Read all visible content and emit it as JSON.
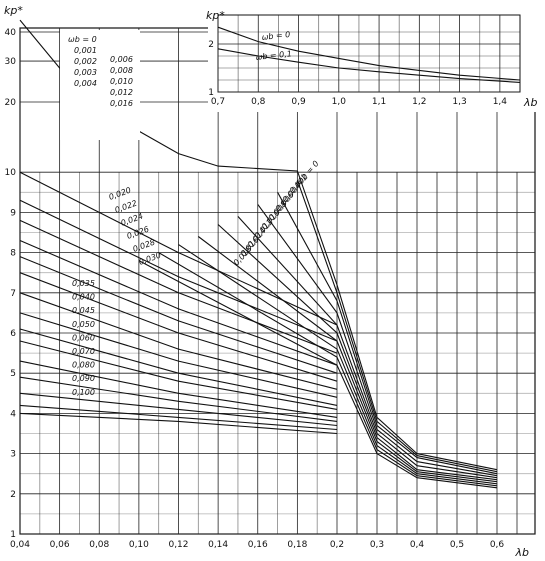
{
  "chart_data": [
    {
      "type": "line",
      "title": "",
      "ylabel": "kp*",
      "xlabel": "λb",
      "x_ticks": [
        "0,04",
        "0,06",
        "0,08",
        "0,10",
        "0,12",
        "0,14",
        "0,16",
        "0,18",
        "0,2",
        "0,3",
        "0,4",
        "0,5",
        "0,6"
      ],
      "y_ticks": [
        "1",
        "2",
        "3",
        "4",
        "5",
        "6",
        "7",
        "8",
        "9",
        "10",
        "20",
        "30",
        "40"
      ],
      "grid": true,
      "legend_left_top": [
        "ωb = 0",
        "0,001",
        "0,002",
        "0,003",
        "0,004",
        "0,006",
        "0,008",
        "0,010",
        "0,012",
        "0,016"
      ],
      "legend_left_middle": [
        "0,020",
        "0,022",
        "0,024",
        "0,026",
        "0,028",
        "0,030",
        "0,035",
        "0,040",
        "0,045",
        "0,050",
        "0,060",
        "0,070",
        "0,080",
        "0,090",
        "0,100"
      ],
      "legend_right": [
        "ωb = 0",
        "0,002",
        "0,004",
        "0,006",
        "0,008",
        "0,010",
        "0,012",
        "0,014",
        "0,016",
        "0,018"
      ],
      "series": [
        {
          "name": "ωb = 0",
          "points": [
            [
              0.04,
              45
            ],
            [
              0.06,
              28
            ],
            [
              0.08,
              19
            ],
            [
              0.1,
              15
            ],
            [
              0.12,
              12
            ],
            [
              0.14,
              10.6
            ],
            [
              0.18,
              10.1
            ],
            [
              0.2,
              7.2
            ],
            [
              0.3,
              3.9
            ],
            [
              0.4,
              3.0
            ],
            [
              0.6,
              2.6
            ]
          ]
        },
        {
          "name": "0,002",
          "points": [
            [
              0.18,
              9.8
            ],
            [
              0.2,
              7.0
            ],
            [
              0.3,
              3.8
            ],
            [
              0.4,
              2.95
            ],
            [
              0.6,
              2.55
            ]
          ]
        },
        {
          "name": "0,004",
          "points": [
            [
              0.17,
              9.5
            ],
            [
              0.2,
              6.8
            ],
            [
              0.3,
              3.7
            ],
            [
              0.4,
              2.9
            ],
            [
              0.6,
              2.5
            ]
          ]
        },
        {
          "name": "0,006",
          "points": [
            [
              0.16,
              9.2
            ],
            [
              0.2,
              6.5
            ],
            [
              0.3,
              3.6
            ],
            [
              0.4,
              2.8
            ],
            [
              0.6,
              2.45
            ]
          ]
        },
        {
          "name": "0,008",
          "points": [
            [
              0.15,
              8.9
            ],
            [
              0.2,
              6.2
            ],
            [
              0.3,
              3.5
            ],
            [
              0.4,
              2.7
            ],
            [
              0.6,
              2.4
            ]
          ]
        },
        {
          "name": "0,010",
          "points": [
            [
              0.14,
              8.7
            ],
            [
              0.2,
              6.0
            ],
            [
              0.3,
              3.4
            ],
            [
              0.4,
              2.6
            ],
            [
              0.6,
              2.35
            ]
          ]
        },
        {
          "name": "0,012",
          "points": [
            [
              0.13,
              8.4
            ],
            [
              0.2,
              5.8
            ],
            [
              0.3,
              3.3
            ],
            [
              0.4,
              2.55
            ],
            [
              0.6,
              2.3
            ]
          ]
        },
        {
          "name": "0,014",
          "points": [
            [
              0.12,
              8.2
            ],
            [
              0.2,
              5.6
            ],
            [
              0.3,
              3.2
            ],
            [
              0.4,
              2.5
            ],
            [
              0.6,
              2.25
            ]
          ]
        },
        {
          "name": "0,016",
          "points": [
            [
              0.11,
              8.0
            ],
            [
              0.2,
              5.4
            ],
            [
              0.3,
              3.1
            ],
            [
              0.4,
              2.45
            ],
            [
              0.6,
              2.2
            ]
          ]
        },
        {
          "name": "0,018",
          "points": [
            [
              0.1,
              7.8
            ],
            [
              0.2,
              5.2
            ],
            [
              0.3,
              3.0
            ],
            [
              0.4,
              2.4
            ],
            [
              0.6,
              2.15
            ]
          ]
        },
        {
          "name": "0,020",
          "points": [
            [
              0.04,
              10
            ],
            [
              0.12,
              8.0
            ],
            [
              0.2,
              6.2
            ]
          ]
        },
        {
          "name": "0,022",
          "points": [
            [
              0.04,
              9.3
            ],
            [
              0.12,
              7.4
            ],
            [
              0.2,
              5.8
            ]
          ]
        },
        {
          "name": "0,024",
          "points": [
            [
              0.04,
              8.8
            ],
            [
              0.12,
              7.0
            ],
            [
              0.2,
              5.5
            ]
          ]
        },
        {
          "name": "0,026",
          "points": [
            [
              0.04,
              8.3
            ],
            [
              0.12,
              6.6
            ],
            [
              0.2,
              5.2
            ]
          ]
        },
        {
          "name": "0,028",
          "points": [
            [
              0.04,
              7.9
            ],
            [
              0.12,
              6.3
            ],
            [
              0.2,
              5.0
            ]
          ]
        },
        {
          "name": "0,030",
          "points": [
            [
              0.04,
              7.5
            ],
            [
              0.12,
              6.0
            ],
            [
              0.2,
              4.8
            ]
          ]
        },
        {
          "name": "0,035",
          "points": [
            [
              0.04,
              7.0
            ],
            [
              0.12,
              5.6
            ],
            [
              0.2,
              4.6
            ]
          ]
        },
        {
          "name": "0,040",
          "points": [
            [
              0.04,
              6.5
            ],
            [
              0.12,
              5.3
            ],
            [
              0.2,
              4.4
            ]
          ]
        },
        {
          "name": "0,045",
          "points": [
            [
              0.04,
              6.1
            ],
            [
              0.12,
              5.0
            ],
            [
              0.2,
              4.2
            ]
          ]
        },
        {
          "name": "0,050",
          "points": [
            [
              0.04,
              5.8
            ],
            [
              0.12,
              4.8
            ],
            [
              0.2,
              4.1
            ]
          ]
        },
        {
          "name": "0,060",
          "points": [
            [
              0.04,
              5.3
            ],
            [
              0.12,
              4.5
            ],
            [
              0.2,
              3.9
            ]
          ]
        },
        {
          "name": "0,070",
          "points": [
            [
              0.04,
              4.9
            ],
            [
              0.12,
              4.3
            ],
            [
              0.2,
              3.8
            ]
          ]
        },
        {
          "name": "0,080",
          "points": [
            [
              0.04,
              4.5
            ],
            [
              0.12,
              4.1
            ],
            [
              0.2,
              3.7
            ]
          ]
        },
        {
          "name": "0,090",
          "points": [
            [
              0.04,
              4.2
            ],
            [
              0.12,
              3.9
            ],
            [
              0.2,
              3.6
            ]
          ]
        },
        {
          "name": "0,100",
          "points": [
            [
              0.04,
              4.0
            ],
            [
              0.12,
              3.8
            ],
            [
              0.2,
              3.5
            ]
          ]
        }
      ]
    },
    {
      "type": "line",
      "title": "",
      "ylabel": "kp*",
      "xlabel": "λb",
      "x_ticks": [
        "0,7",
        "0,8",
        "0,9",
        "1,0",
        "1,1",
        "1,2",
        "1,3",
        "1,4"
      ],
      "y_ticks": [
        "1",
        "2"
      ],
      "grid": true,
      "series": [
        {
          "name": "ωb = 0",
          "points": [
            [
              0.7,
              2.35
            ],
            [
              0.8,
              2.05
            ],
            [
              0.9,
              1.85
            ],
            [
              1.0,
              1.7
            ],
            [
              1.1,
              1.55
            ],
            [
              1.2,
              1.45
            ],
            [
              1.3,
              1.35
            ],
            [
              1.45,
              1.25
            ]
          ]
        },
        {
          "name": "ωb = 0,1",
          "points": [
            [
              0.7,
              1.9
            ],
            [
              0.8,
              1.75
            ],
            [
              0.9,
              1.62
            ],
            [
              1.0,
              1.5
            ],
            [
              1.1,
              1.42
            ],
            [
              1.2,
              1.35
            ],
            [
              1.3,
              1.28
            ],
            [
              1.45,
              1.2
            ]
          ]
        }
      ]
    }
  ]
}
